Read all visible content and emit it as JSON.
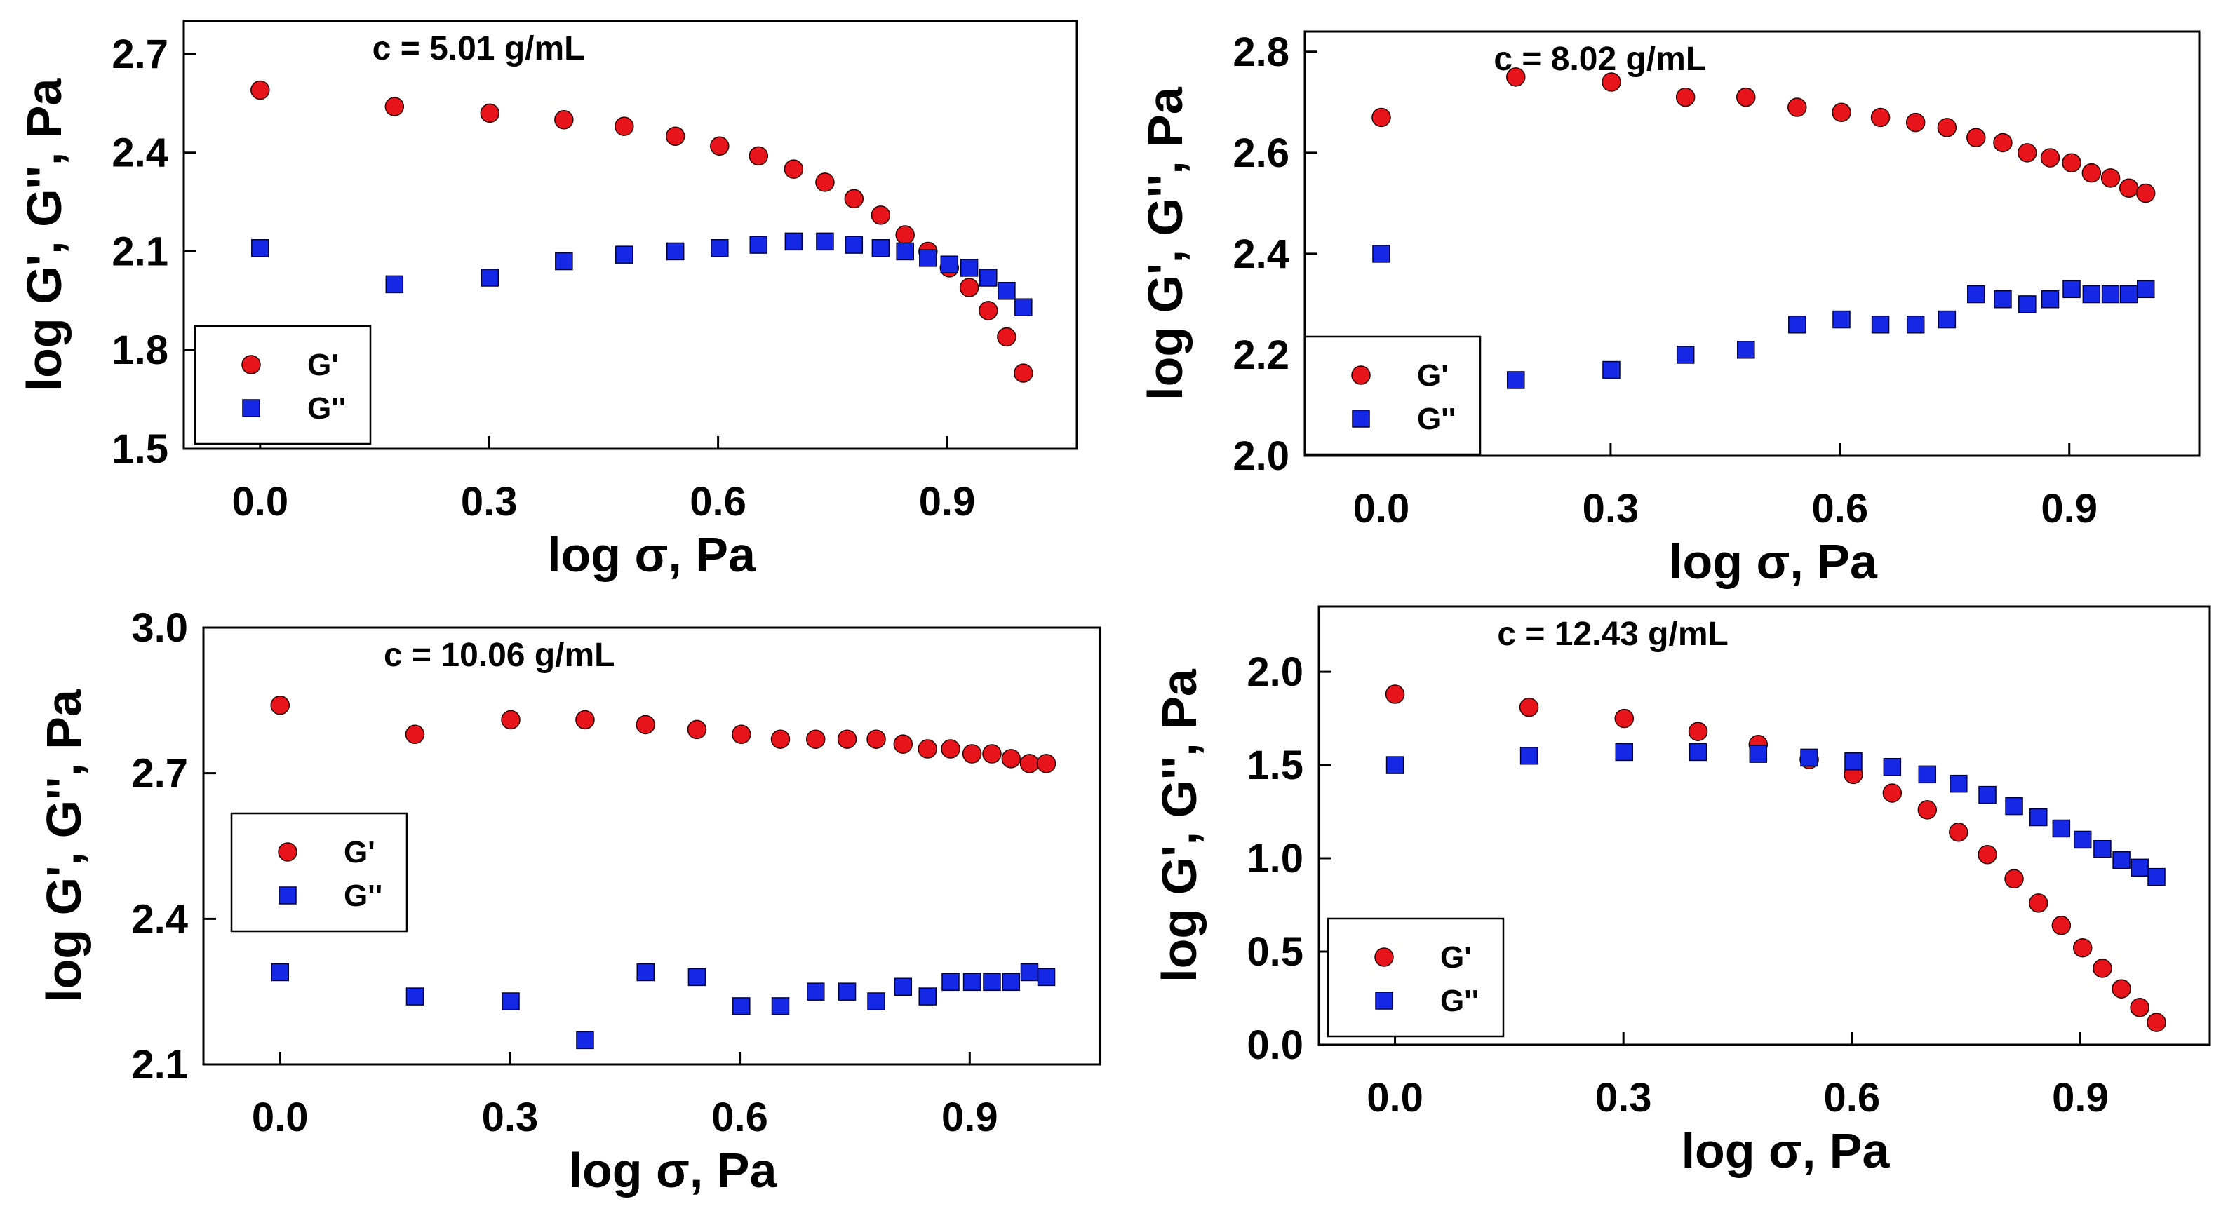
{
  "colors": {
    "g_prime": "#e8141c",
    "g_double_prime": "#1428e6",
    "axis": "#000000"
  },
  "chart_data": [
    {
      "type": "scatter",
      "title": "c = 5.01 g/mL",
      "xlabel": "log σ, Pa",
      "ylabel": "log G', G'', Pa",
      "xlim": [
        -0.1,
        1.07
      ],
      "ylim": [
        1.5,
        2.8
      ],
      "xticks": [
        "0.0",
        "0.3",
        "0.6",
        "0.9"
      ],
      "yticks": [
        "1.5",
        "1.8",
        "2.1",
        "2.4",
        "2.7"
      ],
      "legend_position": "bottom-left",
      "series": [
        {
          "name": "G'",
          "marker": "circle",
          "x": [
            0.0,
            0.176,
            0.301,
            0.398,
            0.477,
            0.544,
            0.602,
            0.653,
            0.699,
            0.74,
            0.778,
            0.813,
            0.845,
            0.875,
            0.903,
            0.929,
            0.954,
            0.978,
            1.0
          ],
          "y": [
            2.59,
            2.54,
            2.52,
            2.5,
            2.48,
            2.45,
            2.42,
            2.39,
            2.35,
            2.31,
            2.26,
            2.21,
            2.15,
            2.1,
            2.05,
            1.99,
            1.92,
            1.84,
            1.73
          ]
        },
        {
          "name": "G''",
          "marker": "square",
          "x": [
            0.0,
            0.176,
            0.301,
            0.398,
            0.477,
            0.544,
            0.602,
            0.653,
            0.699,
            0.74,
            0.778,
            0.813,
            0.845,
            0.875,
            0.903,
            0.929,
            0.954,
            0.978,
            1.0
          ],
          "y": [
            2.11,
            2.0,
            2.02,
            2.07,
            2.09,
            2.1,
            2.11,
            2.12,
            2.13,
            2.13,
            2.12,
            2.11,
            2.1,
            2.08,
            2.06,
            2.05,
            2.02,
            1.98,
            1.93
          ]
        }
      ]
    },
    {
      "type": "scatter",
      "title": "c = 8.02 g/mL",
      "xlabel": "log σ, Pa",
      "ylabel": "log G', G'', Pa",
      "xlim": [
        -0.1,
        1.07
      ],
      "ylim": [
        2.0,
        2.84
      ],
      "xticks": [
        "0.0",
        "0.3",
        "0.6",
        "0.9"
      ],
      "yticks": [
        "2.0",
        "2.2",
        "2.4",
        "2.6",
        "2.8"
      ],
      "legend_position": "bottom-left",
      "series": [
        {
          "name": "G'",
          "marker": "circle",
          "x": [
            0.0,
            0.176,
            0.301,
            0.398,
            0.477,
            0.544,
            0.602,
            0.653,
            0.699,
            0.74,
            0.778,
            0.813,
            0.845,
            0.875,
            0.903,
            0.929,
            0.954,
            0.978,
            1.0
          ],
          "y": [
            2.67,
            2.75,
            2.74,
            2.71,
            2.71,
            2.69,
            2.68,
            2.67,
            2.66,
            2.65,
            2.63,
            2.62,
            2.6,
            2.59,
            2.58,
            2.56,
            2.55,
            2.53,
            2.52
          ]
        },
        {
          "name": "G''",
          "marker": "square",
          "x": [
            0.0,
            0.176,
            0.301,
            0.398,
            0.477,
            0.544,
            0.602,
            0.653,
            0.699,
            0.74,
            0.778,
            0.813,
            0.845,
            0.875,
            0.903,
            0.929,
            0.954,
            0.978,
            1.0
          ],
          "y": [
            2.4,
            2.15,
            2.17,
            2.2,
            2.21,
            2.26,
            2.27,
            2.26,
            2.26,
            2.27,
            2.32,
            2.31,
            2.3,
            2.31,
            2.33,
            2.32,
            2.32,
            2.32,
            2.33
          ]
        }
      ]
    },
    {
      "type": "scatter",
      "title": "c = 10.06 g/mL",
      "xlabel": "log σ, Pa",
      "ylabel": "log G', G'', Pa",
      "xlim": [
        -0.1,
        1.07
      ],
      "ylim": [
        2.1,
        3.0
      ],
      "xticks": [
        "0.0",
        "0.3",
        "0.6",
        "0.9"
      ],
      "yticks": [
        "2.1",
        "2.4",
        "2.7",
        "3.0"
      ],
      "legend_position": "middle-left",
      "series": [
        {
          "name": "G'",
          "marker": "circle",
          "x": [
            0.0,
            0.176,
            0.301,
            0.398,
            0.477,
            0.544,
            0.602,
            0.653,
            0.699,
            0.74,
            0.778,
            0.813,
            0.845,
            0.875,
            0.903,
            0.929,
            0.954,
            0.978,
            1.0
          ],
          "y": [
            2.84,
            2.78,
            2.81,
            2.81,
            2.8,
            2.79,
            2.78,
            2.77,
            2.77,
            2.77,
            2.77,
            2.76,
            2.75,
            2.75,
            2.74,
            2.74,
            2.73,
            2.72,
            2.72
          ]
        },
        {
          "name": "G''",
          "marker": "square",
          "x": [
            0.0,
            0.176,
            0.301,
            0.398,
            0.477,
            0.544,
            0.602,
            0.653,
            0.699,
            0.74,
            0.778,
            0.813,
            0.845,
            0.875,
            0.903,
            0.929,
            0.954,
            0.978,
            1.0
          ],
          "y": [
            2.29,
            2.24,
            2.23,
            2.15,
            2.29,
            2.28,
            2.22,
            2.22,
            2.25,
            2.25,
            2.23,
            2.26,
            2.24,
            2.27,
            2.27,
            2.27,
            2.27,
            2.29,
            2.28
          ]
        }
      ]
    },
    {
      "type": "scatter",
      "title": "c = 12.43 g/mL",
      "xlabel": "log σ, Pa",
      "ylabel": "log G', G'', Pa",
      "xlim": [
        -0.1,
        1.07
      ],
      "ylim": [
        0.0,
        2.35
      ],
      "xticks": [
        "0.0",
        "0.3",
        "0.6",
        "0.9"
      ],
      "yticks": [
        "0.0",
        "0.5",
        "1.0",
        "1.5",
        "2.0"
      ],
      "legend_position": "bottom-left",
      "series": [
        {
          "name": "G'",
          "marker": "circle",
          "x": [
            0.0,
            0.176,
            0.301,
            0.398,
            0.477,
            0.544,
            0.602,
            0.653,
            0.699,
            0.74,
            0.778,
            0.813,
            0.845,
            0.875,
            0.903,
            0.929,
            0.954,
            0.978,
            1.0
          ],
          "y": [
            1.88,
            1.81,
            1.75,
            1.68,
            1.61,
            1.53,
            1.45,
            1.35,
            1.26,
            1.14,
            1.02,
            0.89,
            0.76,
            0.64,
            0.52,
            0.41,
            0.3,
            0.2,
            0.12
          ]
        },
        {
          "name": "G''",
          "marker": "square",
          "x": [
            0.0,
            0.176,
            0.301,
            0.398,
            0.477,
            0.544,
            0.602,
            0.653,
            0.699,
            0.74,
            0.778,
            0.813,
            0.845,
            0.875,
            0.903,
            0.929,
            0.954,
            0.978,
            1.0
          ],
          "y": [
            1.5,
            1.55,
            1.57,
            1.57,
            1.56,
            1.54,
            1.52,
            1.49,
            1.45,
            1.4,
            1.34,
            1.28,
            1.22,
            1.16,
            1.1,
            1.05,
            0.99,
            0.95,
            0.9
          ]
        }
      ]
    }
  ]
}
